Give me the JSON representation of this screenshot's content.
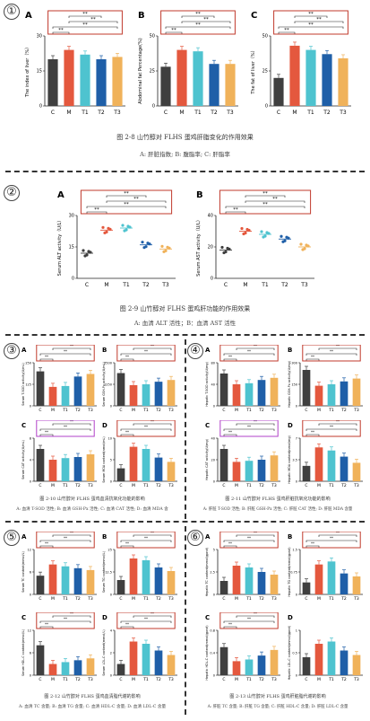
{
  "figure": {
    "sec1": {
      "num": "①",
      "caption": "图 2-8 山竹醇对 FLHS 蛋鸡肝脂变化的作用效果",
      "subcaption": "A: 肝脏指数; B: 腹脂率; C: 肝脂率"
    },
    "sec2": {
      "num": "②",
      "caption": "图 2-9 山竹醇对 FLHS 蛋鸡肝功能的作用效果",
      "subcaption": "A: 血清 ALT 活性；B：血清 AST 活性"
    },
    "sec3": {
      "num": "③",
      "caption": "图 2-10 山竹醇对 FLHS 蛋鸡血清抗氧化功能的影响",
      "subcaption": "A: 血清 T-SOD 活性; B: 血清 GSH-Px 活性; C: 血清 CAT 活性; D: 血清 MDA 含"
    },
    "sec4": {
      "num": "④",
      "caption": "图 2-11 山竹醇对 FLHS 蛋鸡肝脏抗氧化功能的影响",
      "subcaption": "A: 肝脏 T-SOD 活性; B: 肝脏 GSH-Px 活性; C: 肝脏 CAT 活性; D: 肝脏 MDA 含量"
    },
    "sec5": {
      "num": "⑤",
      "caption": "图 2-12 山竹醇对 FLHS 蛋鸡血清脂代谢的影响",
      "subcaption": "A: 血清 TC 含量; B: 血清 TG 含量; C: 血清 HDL-C 含量; D: 血清 LDL-C 含量"
    },
    "sec6": {
      "num": "⑥",
      "caption": "图 2-13 山竹醇对 FLHS 蛋鸡肝脏脂代谢的影响",
      "subcaption": "A: 肝脏 TC 含量; B: 肝脏 TG 含量; C: 肝脏 HDL-C 含量; D: 肝脏 LDL-C 含量"
    }
  },
  "colors": {
    "C": "#3f3f3f",
    "M": "#e4583e",
    "T1": "#4ec3cf",
    "T2": "#1f5fa8",
    "T3": "#f0b25a",
    "box": "#c0392b",
    "purple": "#b040c8"
  },
  "chart_data": [
    {
      "id": "1A",
      "type": "bar",
      "letter": "A",
      "ylabel": "The index of liver（%）",
      "categories": [
        "C",
        "M",
        "T1",
        "T2",
        "T3"
      ],
      "values": [
        20,
        24,
        22,
        20,
        21
      ],
      "ylim": [
        0,
        30
      ],
      "sig": "**"
    },
    {
      "id": "1B",
      "type": "bar",
      "letter": "B",
      "ylabel": "Abdominal fat Percentage(%)",
      "categories": [
        "C",
        "M",
        "T1",
        "T2",
        "T3"
      ],
      "values": [
        28,
        40,
        39,
        30,
        30
      ],
      "ylim": [
        0,
        50
      ],
      "sig": "**"
    },
    {
      "id": "1C",
      "type": "bar",
      "letter": "C",
      "ylabel": "The fat of liver（%）",
      "categories": [
        "C",
        "M",
        "T1",
        "T2",
        "T3"
      ],
      "values": [
        20,
        43,
        40,
        37,
        34
      ],
      "ylim": [
        0,
        50
      ],
      "sig": "**"
    },
    {
      "id": "2A",
      "type": "scatter",
      "letter": "A",
      "ylabel": "Serum ALT activity（U/L）",
      "categories": [
        "C",
        "M",
        "T1",
        "T2",
        "T3"
      ],
      "values": [
        12,
        23,
        24,
        16,
        14
      ],
      "ylim": [
        0,
        30
      ],
      "sig": "**"
    },
    {
      "id": "2B",
      "type": "scatter",
      "letter": "B",
      "ylabel": "Serum AST activity（U/L）",
      "categories": [
        "C",
        "M",
        "T1",
        "T2",
        "T3"
      ],
      "values": [
        18,
        30,
        28,
        25,
        20
      ],
      "ylim": [
        0,
        40
      ],
      "sig": "**"
    },
    {
      "id": "3A",
      "type": "bar",
      "letter": "A",
      "ylabel": "Serum T-SOD activity(U/mL)",
      "categories": [
        "C",
        "M",
        "T1",
        "T2",
        "T3"
      ],
      "values": [
        200,
        110,
        115,
        170,
        185
      ],
      "ylim": [
        0,
        250
      ],
      "sig": "**"
    },
    {
      "id": "3B",
      "type": "bar",
      "letter": "B",
      "ylabel": "Serum GSH-Px activity(U/mL)",
      "categories": [
        "C",
        "M",
        "T1",
        "T2",
        "T3"
      ],
      "values": [
        1900,
        1200,
        1250,
        1400,
        1500
      ],
      "ylim": [
        0,
        2500
      ],
      "sig": "**"
    },
    {
      "id": "3C",
      "type": "bar",
      "letter": "C",
      "ylabel": "Serum CAT activity(U/mL)",
      "categories": [
        "C",
        "M",
        "T1",
        "T2",
        "T3"
      ],
      "values": [
        6,
        4,
        4.3,
        4.5,
        5
      ],
      "ylim": [
        0,
        8
      ],
      "sig": "**"
    },
    {
      "id": "3D",
      "type": "bar",
      "letter": "D",
      "ylabel": "Serum MDA content(nmol/mL)",
      "categories": [
        "C",
        "M",
        "T1",
        "T2",
        "T3"
      ],
      "values": [
        3,
        8,
        7.5,
        5.5,
        4.5
      ],
      "ylim": [
        0,
        10
      ],
      "sig": "**"
    },
    {
      "id": "4A",
      "type": "bar",
      "letter": "A",
      "ylabel": "Hepatic T-SOD activity(U/mg)",
      "categories": [
        "C",
        "M",
        "T1",
        "T2",
        "T3"
      ],
      "values": [
        60,
        40,
        42,
        48,
        52
      ],
      "ylim": [
        0,
        80
      ],
      "sig": "**"
    },
    {
      "id": "4B",
      "type": "bar",
      "letter": "B",
      "ylabel": "Hepatic GSH-Px activity(U/mg)",
      "categories": [
        "C",
        "M",
        "T1",
        "T2",
        "T3"
      ],
      "values": [
        250,
        140,
        150,
        170,
        190
      ],
      "ylim": [
        0,
        300
      ],
      "sig": "**"
    },
    {
      "id": "4C",
      "type": "bar",
      "letter": "C",
      "ylabel": "Hepatic CAT activity(U/mg)",
      "categories": [
        "C",
        "M",
        "T1",
        "T2",
        "T3"
      ],
      "values": [
        30,
        18,
        19,
        20,
        24
      ],
      "ylim": [
        0,
        40
      ],
      "sig": "**"
    },
    {
      "id": "4D",
      "type": "bar",
      "letter": "D",
      "ylabel": "Hepatic MDA content(nmol/mg)",
      "categories": [
        "C",
        "M",
        "T1",
        "T2",
        "T3"
      ],
      "values": [
        2.5,
        5.5,
        5,
        4,
        3
      ],
      "ylim": [
        0,
        7
      ],
      "sig": "**"
    },
    {
      "id": "5A",
      "type": "bar",
      "letter": "A",
      "ylabel": "Serum TC content(mmol/L)",
      "categories": [
        "C",
        "M",
        "T1",
        "T2",
        "T3"
      ],
      "values": [
        5,
        8,
        7.5,
        7,
        6.5
      ],
      "ylim": [
        0,
        12
      ],
      "sig": "**"
    },
    {
      "id": "5B",
      "type": "bar",
      "letter": "B",
      "ylabel": "Serum TG content(mmol/L)",
      "categories": [
        "C",
        "M",
        "T1",
        "T2",
        "T3"
      ],
      "values": [
        8,
        20,
        19,
        15,
        13
      ],
      "ylim": [
        0,
        25
      ],
      "sig": "**"
    },
    {
      "id": "5C",
      "type": "bar",
      "letter": "C",
      "ylabel": "Serum HDL-C content(mmol/L)",
      "categories": [
        "C",
        "M",
        "T1",
        "T2",
        "T3"
      ],
      "values": [
        8,
        3,
        3.5,
        4,
        4.5
      ],
      "ylim": [
        0,
        12
      ],
      "sig": "**"
    },
    {
      "id": "5D",
      "type": "bar",
      "letter": "D",
      "ylabel": "Serum LDL-C content(mmol/L)",
      "categories": [
        "C",
        "M",
        "T1",
        "T2",
        "T3"
      ],
      "values": [
        1,
        3,
        2.8,
        2.2,
        1.8
      ],
      "ylim": [
        0,
        4
      ],
      "sig": "**"
    },
    {
      "id": "6A",
      "type": "bar",
      "letter": "A",
      "ylabel": "Hepatic TC content(mmol/gprot)",
      "categories": [
        "C",
        "M",
        "T1",
        "T2",
        "T3"
      ],
      "values": [
        1.5,
        3.2,
        3,
        2.5,
        2.2
      ],
      "ylim": [
        0,
        5
      ],
      "sig": "**"
    },
    {
      "id": "6B",
      "type": "bar",
      "letter": "B",
      "ylabel": "Hepatic TG content(mmol/gprot)",
      "categories": [
        "C",
        "M",
        "T1",
        "T2",
        "T3"
      ],
      "values": [
        0.4,
        1,
        1.1,
        0.7,
        0.6
      ],
      "ylim": [
        0,
        1.5
      ],
      "sig": "**"
    },
    {
      "id": "6C",
      "type": "bar",
      "letter": "C",
      "ylabel": "Hepatic HDL-C content(mmol/gprot)",
      "categories": [
        "C",
        "M",
        "T1",
        "T2",
        "T3"
      ],
      "values": [
        0.5,
        0.25,
        0.28,
        0.35,
        0.45
      ],
      "ylim": [
        0,
        0.8
      ],
      "sig": "**"
    },
    {
      "id": "6D",
      "type": "bar",
      "letter": "D",
      "ylabel": "Hepatic LDL-C content(mmol/gprot)",
      "categories": [
        "C",
        "M",
        "T1",
        "T2",
        "T3"
      ],
      "values": [
        0.4,
        0.7,
        0.75,
        0.55,
        0.45
      ],
      "ylim": [
        0,
        1
      ]
    }
  ]
}
